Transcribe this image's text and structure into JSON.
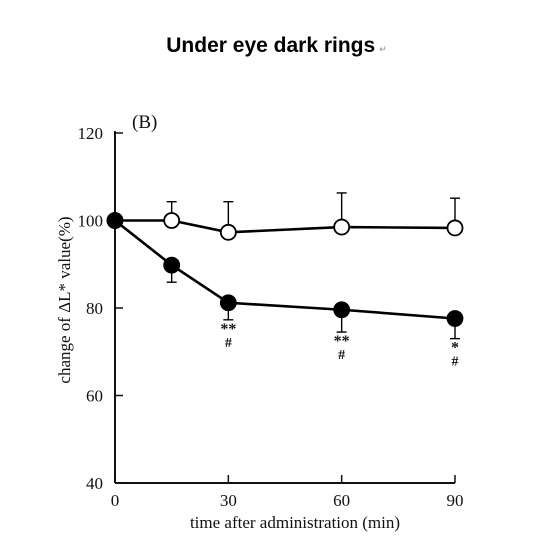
{
  "heading": {
    "text": "Under eye dark rings",
    "mark": "↵"
  },
  "chart_data": {
    "type": "line",
    "panel_label": "(B)",
    "xlabel": "time after administration (min)",
    "ylabel": "change of ΔL* value(%)",
    "xlim": [
      0,
      90
    ],
    "ylim": [
      40,
      120
    ],
    "xticks": [
      0,
      30,
      60,
      90
    ],
    "yticks": [
      40,
      60,
      80,
      100,
      120
    ],
    "grid": false,
    "legend": "none",
    "series": [
      {
        "marker": "open-circle",
        "color": "#000000",
        "x": [
          0,
          15,
          30,
          60,
          90
        ],
        "y": [
          100,
          100,
          97.3,
          98.5,
          98.3
        ],
        "err": [
          0,
          4.3,
          7,
          7.8,
          6.8
        ],
        "annotations": [
          "",
          "",
          "",
          "",
          ""
        ]
      },
      {
        "marker": "filled-circle",
        "color": "#000000",
        "x": [
          0,
          15,
          30,
          60,
          90
        ],
        "y": [
          100,
          89.8,
          81.2,
          79.6,
          77.6
        ],
        "err": [
          0,
          3.9,
          3.9,
          5.1,
          4.6
        ],
        "annotations": [
          "",
          "",
          "**\n#",
          "**\n#",
          "*\n#"
        ]
      }
    ]
  }
}
